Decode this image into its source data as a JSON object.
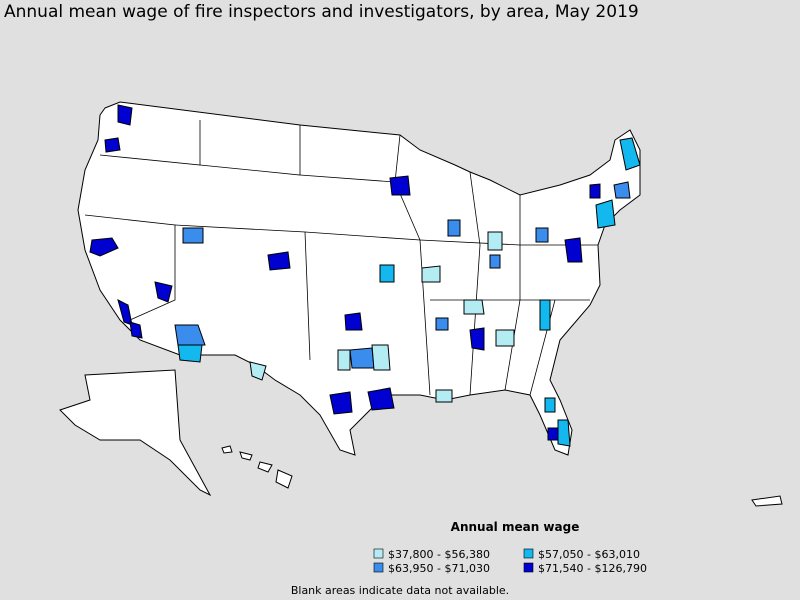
{
  "title": "Annual mean wage of fire inspectors and investigators, by area, May 2019",
  "legend": {
    "title": "Annual mean wage",
    "items": [
      {
        "label": "$37,800 - $56,380",
        "color": "#b4ecf4"
      },
      {
        "label": "$57,050 - $63,010",
        "color": "#12b8ee"
      },
      {
        "label": "$63,950 - $71,030",
        "color": "#3a8ced"
      },
      {
        "label": "$71,540 - $126,790",
        "color": "#0000d0"
      }
    ]
  },
  "note": "Blank areas indicate data not available."
}
